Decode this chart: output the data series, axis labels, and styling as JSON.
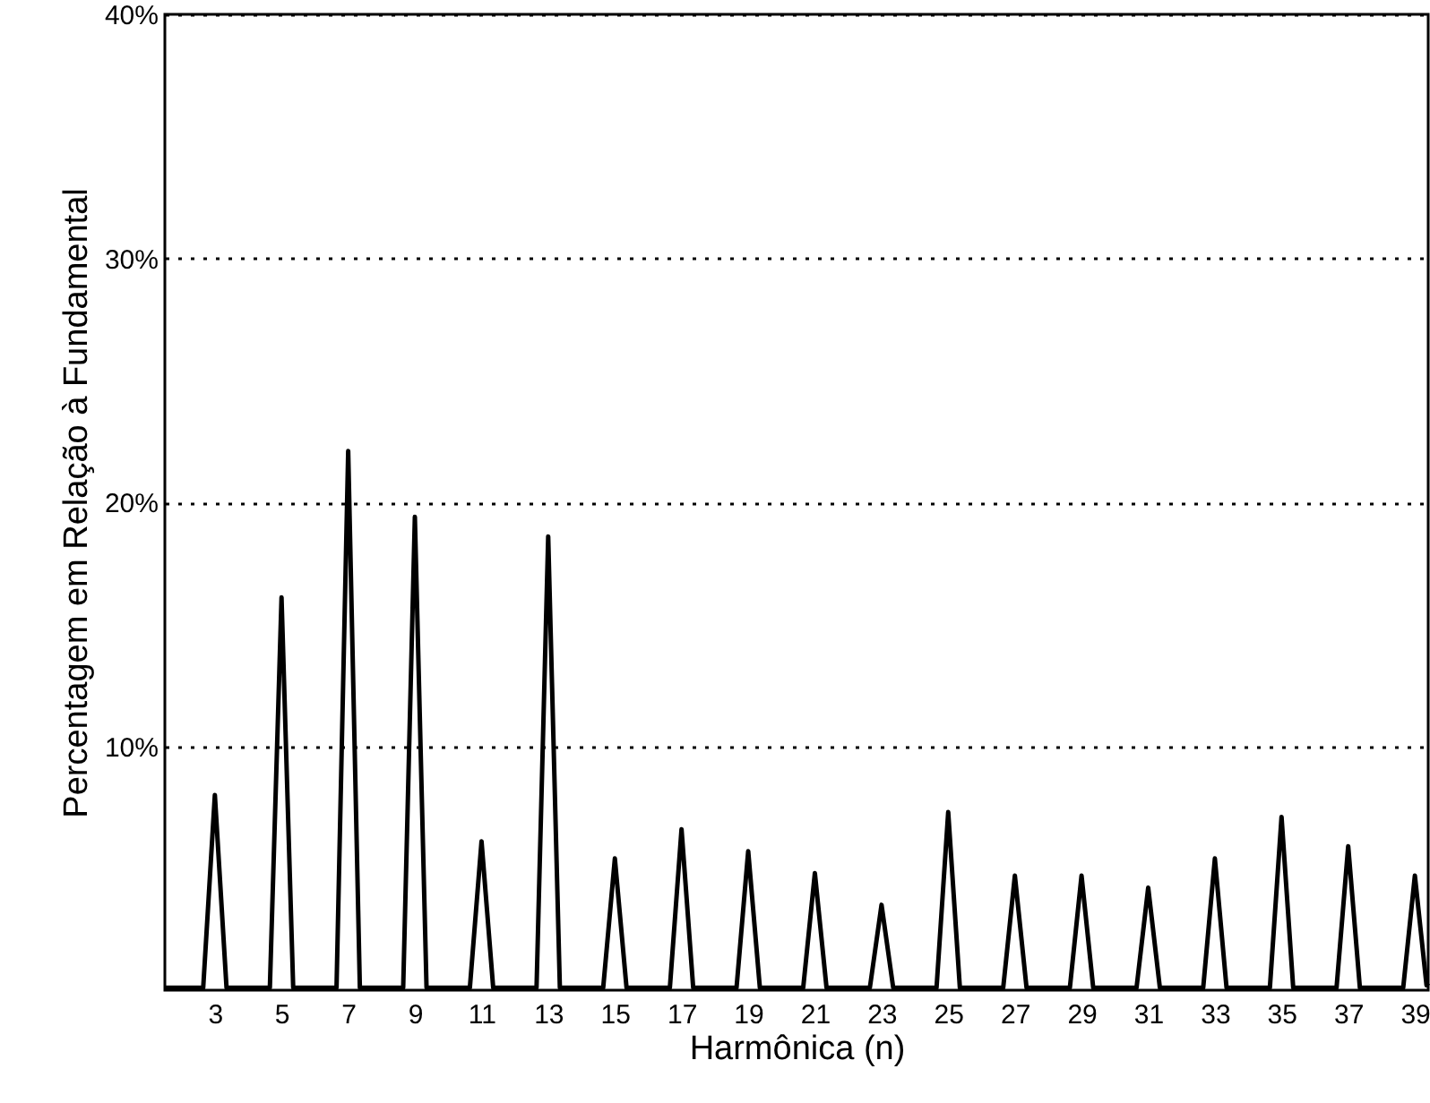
{
  "chart_data": {
    "type": "line",
    "xlabel": "Harmônica (n)",
    "ylabel": "Percentagem em Relação à Fundamental",
    "xlim": [
      1.5,
      39.4
    ],
    "xticks": [
      3,
      5,
      7,
      9,
      11,
      13,
      15,
      17,
      19,
      21,
      23,
      25,
      27,
      29,
      31,
      33,
      35,
      37,
      39
    ],
    "ylim": [
      0,
      40
    ],
    "yticks": [
      {
        "value": 10,
        "label": "10%"
      },
      {
        "value": 20,
        "label": "20%"
      },
      {
        "value": 30,
        "label": "30%"
      },
      {
        "value": 40,
        "label": "40%"
      }
    ],
    "grid": "y",
    "marker": "none",
    "line_style": "solid",
    "series": [
      {
        "color": "#000000",
        "x": [
          1.5,
          2.65,
          3,
          3.35,
          4.65,
          5,
          5.35,
          6.65,
          7,
          7.35,
          8.65,
          9,
          9.35,
          10.65,
          11,
          11.35,
          12.65,
          13,
          13.35,
          14.65,
          15,
          15.35,
          16.65,
          17,
          17.35,
          18.65,
          19,
          19.35,
          20.65,
          21,
          21.35,
          22.65,
          23,
          23.35,
          24.65,
          25,
          25.35,
          26.65,
          27,
          27.35,
          28.65,
          29,
          29.35,
          30.65,
          31,
          31.35,
          32.65,
          33,
          33.35,
          34.65,
          35,
          35.35,
          36.65,
          37,
          37.35,
          38.65,
          39,
          39.35,
          39.4
        ],
        "values": [
          0.1,
          0.1,
          8.0,
          0.1,
          0.1,
          16.1,
          0.1,
          0.1,
          22.1,
          0.1,
          0.1,
          19.4,
          0.1,
          0.1,
          6.1,
          0.1,
          0.1,
          18.6,
          0.1,
          0.1,
          5.4,
          0.1,
          0.1,
          6.6,
          0.1,
          0.1,
          5.7,
          0.1,
          0.1,
          4.8,
          0.1,
          0.1,
          3.5,
          0.1,
          0.1,
          7.3,
          0.1,
          0.1,
          4.7,
          0.1,
          0.1,
          4.7,
          0.1,
          0.1,
          4.2,
          0.1,
          0.1,
          5.4,
          0.1,
          0.1,
          7.1,
          0.1,
          0.1,
          5.9,
          0.1,
          0.1,
          4.7,
          0.2,
          0.3
        ]
      }
    ]
  }
}
